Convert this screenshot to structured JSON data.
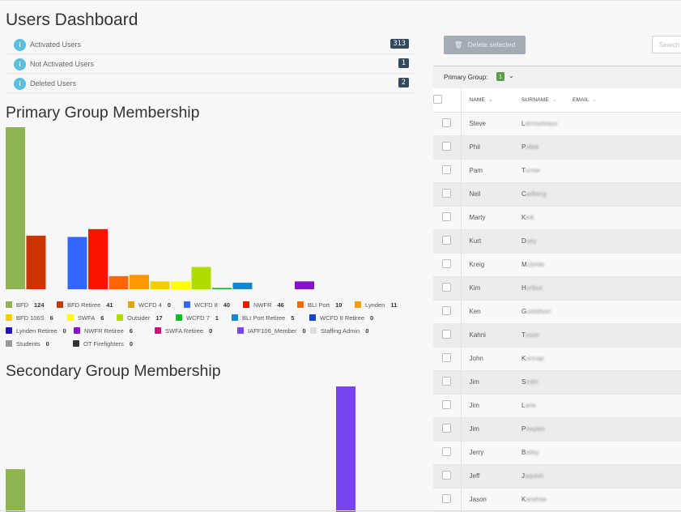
{
  "page_title": "Users Dashboard",
  "stats": [
    {
      "label": "Activated Users",
      "count": "313",
      "icon": "info-icon"
    },
    {
      "label": "Not Activated Users",
      "count": "1",
      "icon": "info-icon"
    },
    {
      "label": "Deleted Users",
      "count": "2",
      "icon": "info-icon"
    }
  ],
  "primary_title": "Primary Group Membership",
  "secondary_title": "Secondary Group Membership",
  "legend": [
    {
      "name": "BFD",
      "count": "124",
      "color": "#8db450"
    },
    {
      "name": "BFD Retiree",
      "count": "41",
      "color": "#cc3300"
    },
    {
      "name": "WCFD 4",
      "count": "0",
      "color": "#e0a50a"
    },
    {
      "name": "WCFD 8",
      "count": "40",
      "color": "#3366ff"
    },
    {
      "name": "NWFR",
      "count": "46",
      "color": "#ff1100"
    },
    {
      "name": "BLI Port",
      "count": "10",
      "color": "#ff6600"
    },
    {
      "name": "Lynden",
      "count": "11",
      "color": "#ff9900"
    },
    {
      "name": "BFD 106S",
      "count": "6",
      "color": "#f0cc00"
    },
    {
      "name": "SWFA",
      "count": "6",
      "color": "#ffff00"
    },
    {
      "name": "Outsider",
      "count": "17",
      "color": "#b0dd00"
    },
    {
      "name": "WCFD 7",
      "count": "1",
      "color": "#11bb22"
    },
    {
      "name": "BLI Port Retiree",
      "count": "5",
      "color": "#1188cc"
    },
    {
      "name": "WCFD 8 Retiree",
      "count": "0",
      "color": "#1144cc"
    },
    {
      "name": "Lynden Retiree",
      "count": "0",
      "color": "#2211bb"
    },
    {
      "name": "NWFR Retiree",
      "count": "6",
      "color": "#8811cc"
    },
    {
      "name": "SWFA Retiree",
      "count": "0",
      "color": "#cc1177"
    },
    {
      "name": "IAFF106_Member",
      "count": "0",
      "color": "#7744ee"
    },
    {
      "name": "Staffing Admin",
      "count": "0",
      "color": "#dddddd"
    },
    {
      "name": "Students",
      "count": "0",
      "color": "#999999"
    },
    {
      "name": "OT Firefighters",
      "count": "0",
      "color": "#333333"
    }
  ],
  "chart_data": [
    {
      "type": "bar",
      "categories": [
        "BFD",
        "BFD Retiree",
        "WCFD 4",
        "WCFD 8",
        "NWFR",
        "BLI Port",
        "Lynden",
        "BFD 106S",
        "SWFA",
        "Outsider",
        "WCFD 7",
        "BLI Port Retiree",
        "WCFD 8 Retiree",
        "Lynden Retiree",
        "NWFR Retiree",
        "SWFA Retiree",
        "IAFF106_Member",
        "Staffing Admin",
        "Students",
        "OT Firefighters"
      ],
      "values": [
        124,
        41,
        0,
        40,
        46,
        10,
        11,
        6,
        6,
        17,
        1,
        5,
        0,
        0,
        6,
        0,
        0,
        0,
        0,
        0
      ],
      "colors": [
        "#8db450",
        "#cc3300",
        "#e0a50a",
        "#3366ff",
        "#ff1100",
        "#ff6600",
        "#ff9900",
        "#f0cc00",
        "#ffff00",
        "#b0dd00",
        "#11bb22",
        "#1188cc",
        "#1144cc",
        "#2211bb",
        "#8811cc",
        "#cc1177",
        "#7744ee",
        "#dddddd",
        "#999999",
        "#333333"
      ],
      "title": "Primary Group Membership",
      "xlabel": "",
      "ylabel": "",
      "ylim": [
        0,
        124
      ],
      "grid": false
    },
    {
      "type": "bar",
      "categories": [
        "BFD",
        "IAFF106_Member"
      ],
      "values": [
        45,
        132
      ],
      "colors": [
        "#8db450",
        "#7744ee"
      ],
      "title": "Secondary Group Membership",
      "xlabel": "",
      "ylabel": "",
      "grid": false
    }
  ],
  "toolbar": {
    "delete_label": "Delete selected",
    "search_placeholder": "Search"
  },
  "group_filter": {
    "label": "Primary Group:",
    "value": "1"
  },
  "table": {
    "headers": {
      "name": "NAME",
      "surname": "SURNAME",
      "email": "EMAIL"
    },
    "rows": [
      {
        "name": "Steve",
        "surname": "Lamoureaux"
      },
      {
        "name": "Phil",
        "surname": "Pollek"
      },
      {
        "name": "Pam",
        "surname": "Turner"
      },
      {
        "name": "Neil",
        "surname": "Carlberg"
      },
      {
        "name": "Marty",
        "surname": "Kink"
      },
      {
        "name": "Kurt",
        "surname": "Duey"
      },
      {
        "name": "Kreig",
        "surname": "Mcbride"
      },
      {
        "name": "Kim",
        "surname": "Hurlbut"
      },
      {
        "name": "Ken",
        "surname": "Gustafson"
      },
      {
        "name": "Kahni",
        "surname": "Tuson"
      },
      {
        "name": "John",
        "surname": "Kunnap"
      },
      {
        "name": "Jim",
        "surname": "Smith"
      },
      {
        "name": "Jim",
        "surname": "Lane"
      },
      {
        "name": "Jim",
        "surname": "Peeples"
      },
      {
        "name": "Jerry",
        "surname": "Bailey"
      },
      {
        "name": "Jeff",
        "surname": "Jaquish"
      },
      {
        "name": "Jason",
        "surname": "Karwhite"
      }
    ]
  }
}
